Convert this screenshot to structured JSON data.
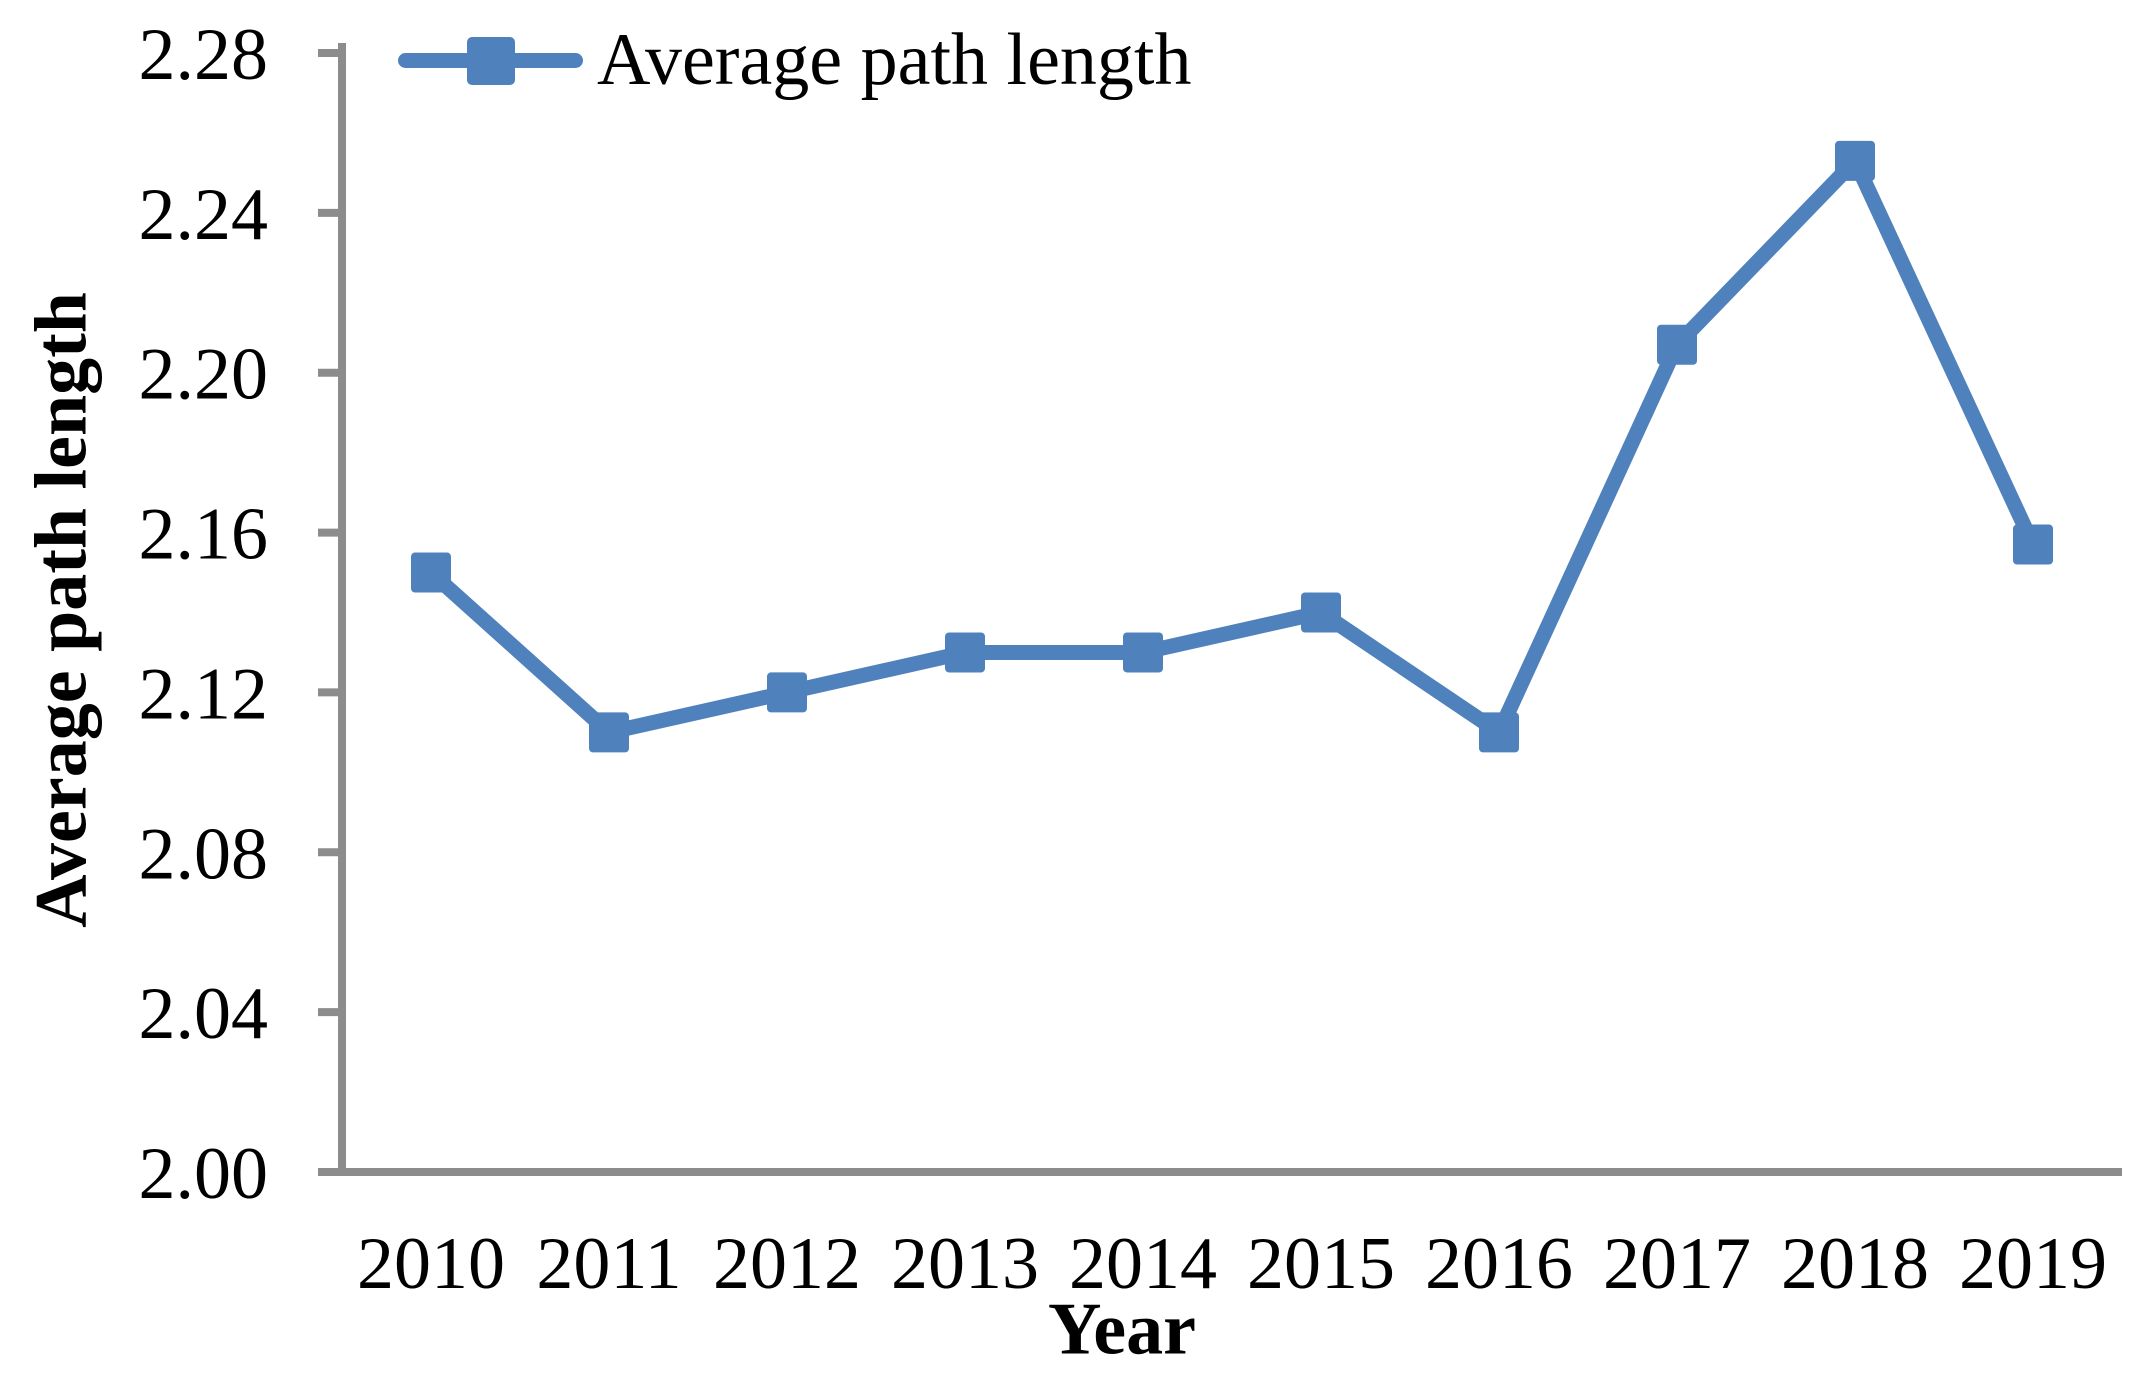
{
  "chart_data": {
    "type": "line",
    "title": "",
    "xlabel": "Year",
    "ylabel": "Average path length",
    "categories": [
      "2010",
      "2011",
      "2012",
      "2013",
      "2014",
      "2015",
      "2016",
      "2017",
      "2018",
      "2019"
    ],
    "series": [
      {
        "name": "Average path length",
        "values": [
          2.15,
          2.11,
          2.12,
          2.13,
          2.13,
          2.14,
          2.11,
          2.207,
          2.253,
          2.157
        ]
      }
    ],
    "ylim": [
      2.0,
      2.28
    ],
    "ytick_step": 0.04,
    "ytick_labels": [
      "2.00",
      "2.04",
      "2.08",
      "2.12",
      "2.16",
      "2.20",
      "2.24",
      "2.28"
    ],
    "grid": false,
    "legend": {
      "position": "top-left",
      "entries": [
        "Average path length"
      ]
    },
    "marker": "square",
    "colors": {
      "series": "#4F81BD",
      "axis": "#8C8C8C",
      "text": "#000000",
      "background": "#FFFFFF"
    }
  }
}
